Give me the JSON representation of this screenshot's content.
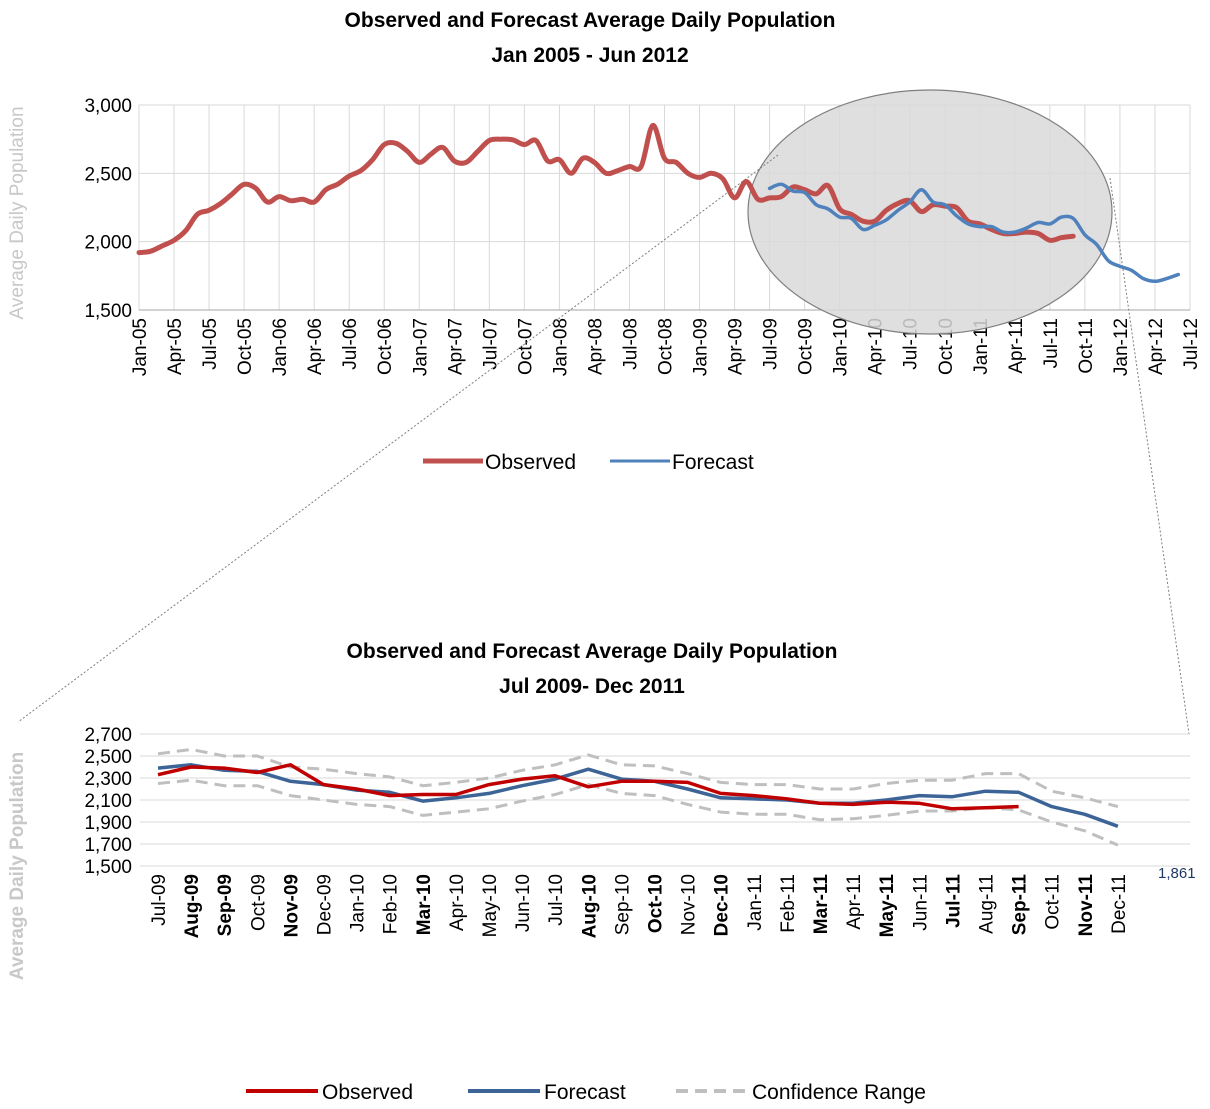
{
  "chart_data": [
    {
      "type": "line",
      "title": "Observed and Forecast Average Daily Population",
      "subtitle": "Jan 2005 - Jun 2012",
      "ylabel": "Average Daily Population",
      "ylim": [
        1500,
        3000
      ],
      "yticks": [
        "1,500",
        "2,000",
        "2,500",
        "3,000"
      ],
      "xticks": [
        "Jan-05",
        "Apr-05",
        "Jul-05",
        "Oct-05",
        "Jan-06",
        "Apr-06",
        "Jul-06",
        "Oct-06",
        "Jan-07",
        "Apr-07",
        "Jul-07",
        "Oct-07",
        "Jan-08",
        "Apr-08",
        "Jul-08",
        "Oct-08",
        "Jan-09",
        "Apr-09",
        "Jul-09",
        "Oct-09",
        "Jan-10",
        "Apr-10",
        "Jul-10",
        "Oct-10",
        "Jan-11",
        "Apr-11",
        "Jul-11",
        "Oct-11",
        "Jan-12",
        "Apr-12",
        "Jul-12"
      ],
      "grid": true,
      "legend": "bottom",
      "series": [
        {
          "name": "Observed",
          "color": "#c0504d",
          "start": "Jan-05",
          "values": [
            1920,
            1930,
            1970,
            2010,
            2080,
            2200,
            2230,
            2280,
            2350,
            2420,
            2390,
            2290,
            2330,
            2300,
            2310,
            2290,
            2380,
            2420,
            2480,
            2520,
            2600,
            2710,
            2720,
            2660,
            2580,
            2640,
            2690,
            2590,
            2580,
            2660,
            2740,
            2750,
            2745,
            2710,
            2740,
            2590,
            2600,
            2500,
            2610,
            2580,
            2500,
            2520,
            2550,
            2550,
            2850,
            2610,
            2580,
            2500,
            2470,
            2500,
            2460,
            2320,
            2440,
            2310,
            2320,
            2330,
            2400,
            2380,
            2350,
            2410,
            2240,
            2200,
            2150,
            2150,
            2230,
            2280,
            2300,
            2220,
            2270,
            2260,
            2250,
            2150,
            2130,
            2090,
            2060,
            2060,
            2070,
            2060,
            2010,
            2030,
            2040
          ]
        },
        {
          "name": "Forecast",
          "color": "#4f81bd",
          "start": "Jul-09",
          "values": [
            2390,
            2420,
            2370,
            2360,
            2270,
            2240,
            2180,
            2170,
            2090,
            2120,
            2160,
            2230,
            2290,
            2380,
            2290,
            2270,
            2190,
            2130,
            2110,
            2110,
            2070,
            2070,
            2100,
            2140,
            2130,
            2180,
            2170,
            2050,
            1980,
            1861,
            1820,
            1790,
            1730,
            1710,
            1730,
            1760
          ]
        }
      ]
    },
    {
      "type": "line",
      "title": "Observed and Forecast Average Daily Population",
      "subtitle": "Jul 2009- Dec 2011",
      "ylabel": "Average Daily Population",
      "ylim": [
        1500,
        2700
      ],
      "yticks": [
        "1,500",
        "1,700",
        "1,900",
        "2,100",
        "2,300",
        "2,500",
        "2,700"
      ],
      "categories": [
        "Jul-09",
        "Aug-09",
        "Sep-09",
        "Oct-09",
        "Nov-09",
        "Dec-09",
        "Jan-10",
        "Feb-10",
        "Mar-10",
        "Apr-10",
        "May-10",
        "Jun-10",
        "Jul-10",
        "Aug-10",
        "Sep-10",
        "Oct-10",
        "Nov-10",
        "Dec-10",
        "Jan-11",
        "Feb-11",
        "Mar-11",
        "Apr-11",
        "May-11",
        "Jun-11",
        "Jul-11",
        "Aug-11",
        "Sep-11",
        "Oct-11",
        "Nov-11",
        "Dec-11"
      ],
      "bold_categories": [
        "Aug-09",
        "Sep-09",
        "Nov-09",
        "Mar-10",
        "Aug-10",
        "Oct-10",
        "Dec-10",
        "Mar-11",
        "May-11",
        "Jul-11",
        "Sep-11",
        "Nov-11"
      ],
      "grid": true,
      "legend": "bottom",
      "end_label": "1,861",
      "series": [
        {
          "name": "Observed",
          "color": "#c00000",
          "style": "solid",
          "values": [
            2330,
            2400,
            2390,
            2350,
            2420,
            2240,
            2200,
            2140,
            2150,
            2150,
            2240,
            2290,
            2320,
            2220,
            2270,
            2270,
            2260,
            2160,
            2140,
            2110,
            2070,
            2060,
            2080,
            2070,
            2020,
            2030,
            2040,
            null,
            null,
            null
          ]
        },
        {
          "name": "Forecast",
          "color": "#3c6496",
          "style": "solid",
          "values": [
            2390,
            2420,
            2370,
            2360,
            2270,
            2240,
            2190,
            2170,
            2090,
            2120,
            2160,
            2230,
            2290,
            2380,
            2290,
            2270,
            2200,
            2120,
            2110,
            2100,
            2070,
            2070,
            2100,
            2140,
            2130,
            2180,
            2170,
            2040,
            1970,
            1861
          ]
        },
        {
          "name": "Confidence Range",
          "color": "#bfbfbf",
          "style": "dashed",
          "values": [
            2520,
            2560,
            2500,
            2500,
            2400,
            2380,
            2340,
            2310,
            2230,
            2260,
            2300,
            2370,
            2420,
            2510,
            2420,
            2410,
            2340,
            2260,
            2240,
            2240,
            2200,
            2200,
            2250,
            2280,
            2280,
            2340,
            2340,
            2180,
            2120,
            2040
          ]
        },
        {
          "name": "",
          "color": "#bfbfbf",
          "style": "dashed",
          "values": [
            2250,
            2280,
            2230,
            2230,
            2140,
            2100,
            2060,
            2040,
            1960,
            1990,
            2020,
            2090,
            2150,
            2240,
            2160,
            2140,
            2060,
            1990,
            1970,
            1970,
            1920,
            1930,
            1960,
            2000,
            2000,
            2030,
            2010,
            1900,
            1820,
            1690
          ]
        }
      ]
    }
  ]
}
